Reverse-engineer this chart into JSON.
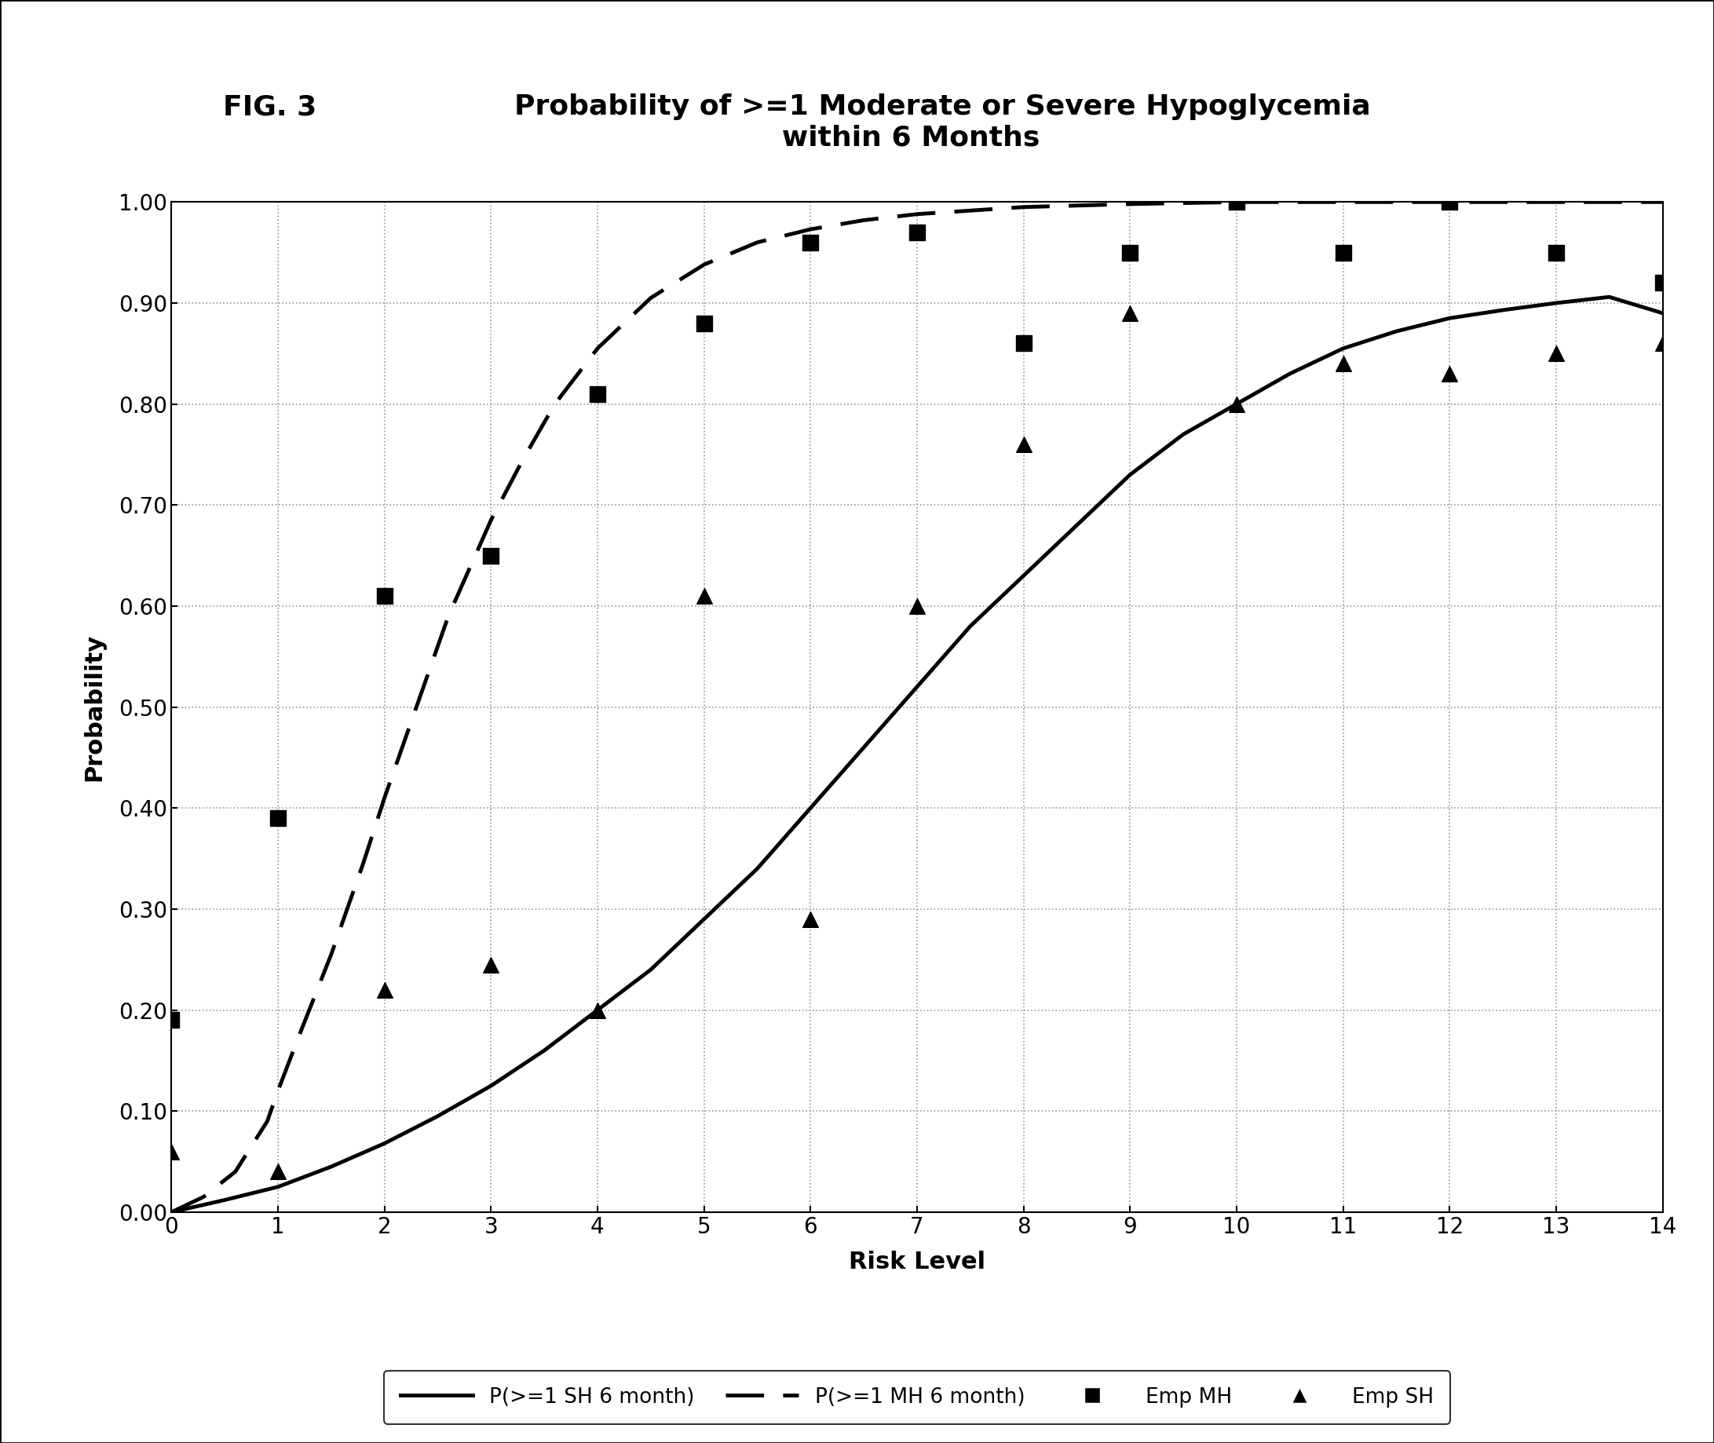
{
  "title_fig": "FIG. 3",
  "title_main": "Probability of >=1 Moderate or Severe Hypoglycemia\nwithin 6 Months",
  "xlabel": "Risk Level",
  "ylabel": "Probability",
  "xlim": [
    0,
    14
  ],
  "ylim": [
    0.0,
    1.0
  ],
  "yticks": [
    0.0,
    0.1,
    0.2,
    0.3,
    0.4,
    0.5,
    0.6,
    0.7,
    0.8,
    0.9,
    1.0
  ],
  "xticks": [
    0,
    1,
    2,
    3,
    4,
    5,
    6,
    7,
    8,
    9,
    10,
    11,
    12,
    13,
    14
  ],
  "sh_curve_x": [
    0.0,
    0.5,
    1.0,
    1.5,
    2.0,
    2.5,
    3.0,
    3.5,
    4.0,
    4.5,
    5.0,
    5.5,
    6.0,
    6.5,
    7.0,
    7.5,
    8.0,
    8.5,
    9.0,
    9.5,
    10.0,
    10.5,
    11.0,
    11.5,
    12.0,
    12.5,
    13.0,
    13.5,
    14.0
  ],
  "sh_curve_y": [
    0.0,
    0.012,
    0.025,
    0.045,
    0.068,
    0.095,
    0.125,
    0.16,
    0.2,
    0.24,
    0.29,
    0.34,
    0.4,
    0.46,
    0.52,
    0.58,
    0.63,
    0.68,
    0.73,
    0.77,
    0.8,
    0.83,
    0.855,
    0.872,
    0.885,
    0.893,
    0.9,
    0.906,
    0.89
  ],
  "mh_curve_x": [
    0.0,
    0.3,
    0.6,
    0.9,
    1.0,
    1.2,
    1.5,
    1.8,
    2.0,
    2.3,
    2.6,
    3.0,
    3.3,
    3.6,
    4.0,
    4.5,
    5.0,
    5.5,
    6.0,
    6.5,
    7.0,
    8.0,
    9.0,
    10.0,
    11.0,
    12.0,
    13.0,
    14.0
  ],
  "mh_curve_y": [
    0.0,
    0.015,
    0.04,
    0.09,
    0.12,
    0.175,
    0.255,
    0.345,
    0.41,
    0.5,
    0.59,
    0.685,
    0.745,
    0.8,
    0.855,
    0.905,
    0.938,
    0.96,
    0.973,
    0.982,
    0.988,
    0.995,
    0.998,
    1.0,
    1.0,
    1.0,
    1.0,
    1.0
  ],
  "emp_mh_x": [
    0,
    1,
    2,
    3,
    4,
    5,
    6,
    7,
    8,
    9,
    10,
    11,
    12,
    13,
    14
  ],
  "emp_mh_y": [
    0.19,
    0.39,
    0.61,
    0.65,
    0.81,
    0.88,
    0.96,
    0.97,
    0.86,
    0.95,
    1.0,
    0.95,
    1.0,
    0.95,
    0.92
  ],
  "emp_sh_x": [
    0,
    1,
    2,
    3,
    4,
    5,
    6,
    7,
    8,
    9,
    10,
    11,
    12,
    13,
    14
  ],
  "emp_sh_y": [
    0.06,
    0.04,
    0.22,
    0.245,
    0.2,
    0.61,
    0.29,
    0.6,
    0.76,
    0.89,
    0.8,
    0.84,
    0.83,
    0.85,
    0.86
  ],
  "sh_line_color": "#000000",
  "mh_line_color": "#000000",
  "emp_mh_color": "#000000",
  "emp_sh_color": "#000000",
  "background_color": "#ffffff",
  "grid_color": "#999999",
  "legend_sh_label": "P(>=1 SH 6 month)",
  "legend_mh_label": "P(>=1 MH 6 month)",
  "legend_empmh_label": "Emp MH",
  "legend_empsh_label": "Emp SH",
  "title_fontsize": 26,
  "label_fontsize": 22,
  "tick_fontsize": 20,
  "legend_fontsize": 19,
  "fig_label_fontsize": 26
}
